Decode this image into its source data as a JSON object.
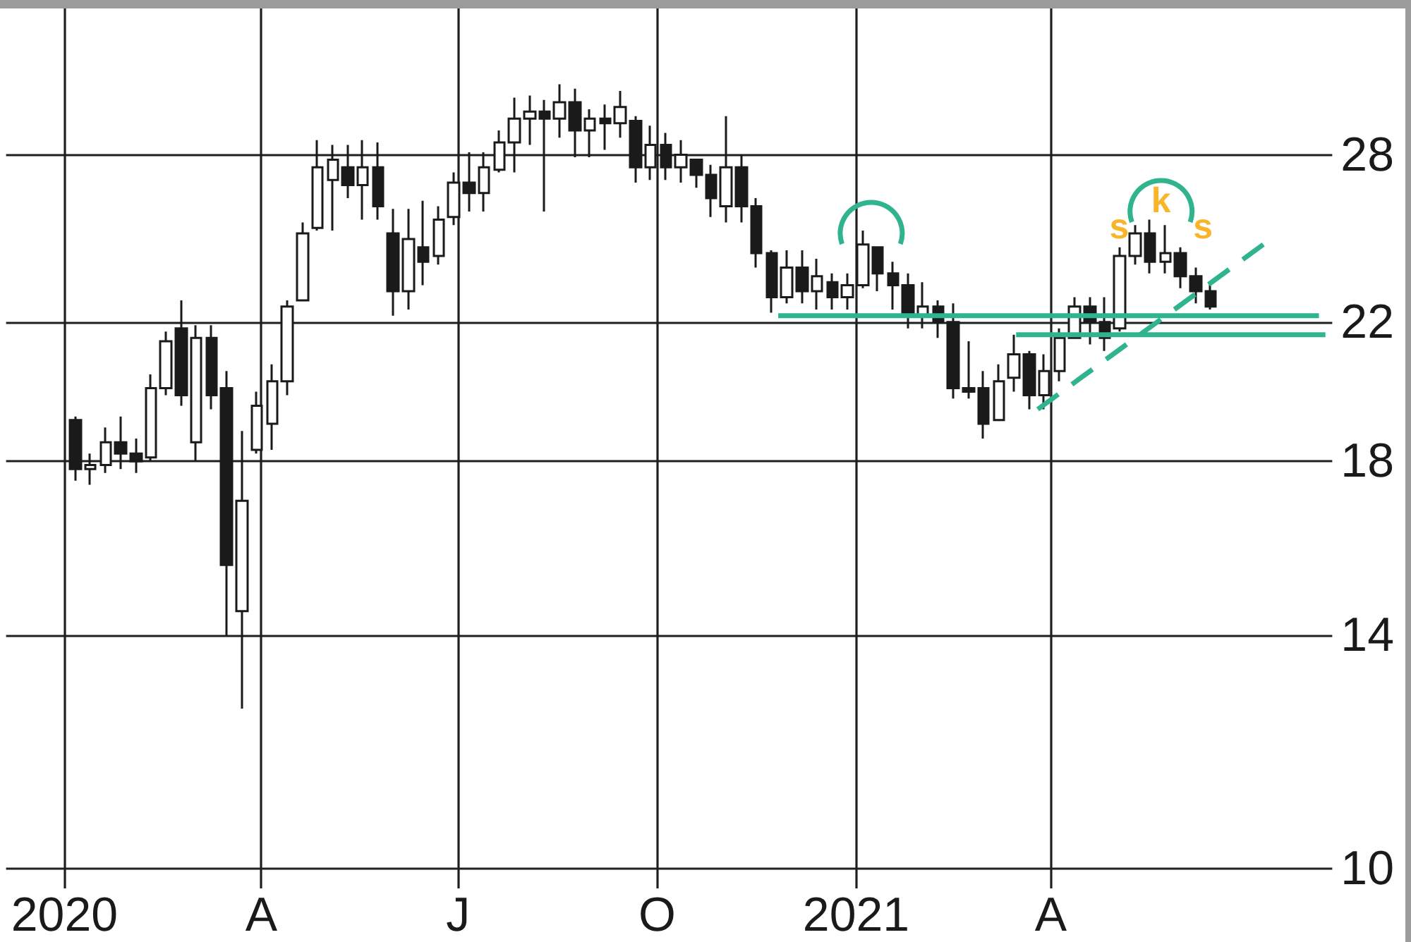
{
  "chart_data": {
    "type": "candlestick",
    "log": "y",
    "grid": true,
    "xlim": [
      "2019-12-05",
      "2021-09-10"
    ],
    "ylim": [
      9,
      35
    ],
    "xticks": [
      {
        "value": "2020-01-01",
        "label": "2020"
      },
      {
        "value": "2020-04-01",
        "label": "A"
      },
      {
        "value": "2020-07-01",
        "label": "J"
      },
      {
        "value": "2020-10-01",
        "label": "O"
      },
      {
        "value": "2021-01-01",
        "label": "2021"
      },
      {
        "value": "2021-04-01",
        "label": "A"
      }
    ],
    "yticks": [
      10,
      14,
      18,
      22,
      28
    ],
    "series": [
      {
        "color": "#1a1a1a",
        "x": [
          "2020-01-06",
          "2020-01-13",
          "2020-01-20",
          "2020-01-27",
          "2020-02-03",
          "2020-02-10",
          "2020-02-17",
          "2020-02-24",
          "2020-03-02",
          "2020-03-09",
          "2020-03-16",
          "2020-03-23",
          "2020-03-30",
          "2020-04-06",
          "2020-04-13",
          "2020-04-20",
          "2020-04-27",
          "2020-05-04",
          "2020-05-11",
          "2020-05-18",
          "2020-05-25",
          "2020-06-01",
          "2020-06-08",
          "2020-06-15",
          "2020-06-22",
          "2020-06-29",
          "2020-07-06",
          "2020-07-13",
          "2020-07-20",
          "2020-07-27",
          "2020-08-03",
          "2020-08-10",
          "2020-08-17",
          "2020-08-24",
          "2020-08-31",
          "2020-09-07",
          "2020-09-14",
          "2020-09-21",
          "2020-09-28",
          "2020-10-05",
          "2020-10-12",
          "2020-10-19",
          "2020-10-26",
          "2020-11-02",
          "2020-11-09",
          "2020-11-16",
          "2020-11-23",
          "2020-11-30",
          "2020-12-07",
          "2020-12-14",
          "2020-12-21",
          "2020-12-28",
          "2021-01-04",
          "2021-01-11",
          "2021-01-18",
          "2021-01-25",
          "2021-02-01",
          "2021-02-08",
          "2021-02-15",
          "2021-02-22",
          "2021-03-01",
          "2021-03-08",
          "2021-03-15",
          "2021-03-22",
          "2021-03-29",
          "2021-04-05",
          "2021-04-12",
          "2021-04-19",
          "2021-04-26",
          "2021-05-03",
          "2021-05-10",
          "2021-05-17",
          "2021-05-24",
          "2021-05-31",
          "2021-06-07",
          "2021-06-14"
        ],
        "ohlc": [
          [
            19.1,
            19.2,
            17.5,
            17.8
          ],
          [
            17.8,
            18.2,
            17.4,
            17.9
          ],
          [
            17.9,
            18.9,
            17.7,
            18.5
          ],
          [
            18.5,
            19.2,
            17.8,
            18.2
          ],
          [
            18.2,
            18.6,
            17.7,
            18.0
          ],
          [
            18.1,
            20.4,
            18.0,
            20.0
          ],
          [
            20.0,
            21.7,
            19.8,
            21.4
          ],
          [
            21.8,
            22.7,
            19.5,
            19.8
          ],
          [
            18.5,
            21.9,
            18.0,
            21.5
          ],
          [
            21.5,
            21.9,
            19.4,
            19.8
          ],
          [
            20.0,
            20.5,
            14.0,
            15.5
          ],
          [
            14.5,
            18.8,
            12.6,
            17.0
          ],
          [
            18.3,
            19.9,
            18.2,
            19.5
          ],
          [
            19.0,
            20.7,
            18.3,
            20.2
          ],
          [
            20.2,
            22.7,
            19.8,
            22.5
          ],
          [
            22.7,
            25.4,
            22.7,
            25.0
          ],
          [
            25.2,
            28.6,
            25.1,
            27.5
          ],
          [
            27.0,
            28.4,
            25.1,
            27.8
          ],
          [
            27.5,
            28.4,
            26.3,
            26.8
          ],
          [
            26.8,
            28.6,
            25.5,
            27.5
          ],
          [
            27.5,
            28.5,
            25.5,
            26.0
          ],
          [
            25.0,
            25.9,
            22.2,
            23.0
          ],
          [
            23.0,
            25.9,
            22.4,
            24.8
          ],
          [
            24.5,
            26.2,
            23.2,
            24.0
          ],
          [
            24.2,
            26.0,
            23.9,
            25.5
          ],
          [
            25.6,
            27.3,
            25.3,
            26.9
          ],
          [
            26.9,
            28.1,
            25.8,
            26.5
          ],
          [
            26.5,
            28.1,
            25.8,
            27.5
          ],
          [
            27.4,
            29.0,
            27.3,
            28.5
          ],
          [
            28.5,
            30.4,
            27.3,
            29.5
          ],
          [
            29.5,
            30.5,
            28.4,
            29.8
          ],
          [
            29.8,
            30.3,
            25.8,
            29.5
          ],
          [
            29.5,
            31.0,
            28.7,
            30.2
          ],
          [
            30.2,
            30.8,
            27.9,
            29.0
          ],
          [
            29.0,
            29.9,
            27.9,
            29.5
          ],
          [
            29.5,
            30.1,
            28.2,
            29.3
          ],
          [
            29.3,
            30.7,
            28.7,
            30.0
          ],
          [
            29.4,
            29.6,
            26.9,
            27.5
          ],
          [
            27.5,
            29.2,
            27.0,
            28.4
          ],
          [
            28.4,
            28.9,
            27.0,
            27.5
          ],
          [
            27.5,
            28.6,
            26.9,
            28.0
          ],
          [
            27.8,
            27.8,
            26.7,
            27.2
          ],
          [
            27.2,
            27.6,
            25.6,
            26.3
          ],
          [
            26.0,
            29.6,
            25.4,
            27.5
          ],
          [
            27.5,
            28.0,
            25.4,
            26.0
          ],
          [
            26.0,
            26.3,
            23.8,
            24.3
          ],
          [
            24.3,
            24.4,
            22.3,
            22.8
          ],
          [
            22.8,
            24.4,
            22.6,
            23.8
          ],
          [
            23.8,
            24.4,
            22.6,
            23.0
          ],
          [
            23.0,
            24.1,
            22.4,
            23.5
          ],
          [
            23.3,
            23.6,
            22.4,
            22.8
          ],
          [
            22.8,
            23.6,
            22.4,
            23.2
          ],
          [
            23.2,
            25.1,
            23.1,
            24.6
          ],
          [
            24.5,
            24.5,
            23.0,
            23.6
          ],
          [
            23.6,
            24.0,
            22.4,
            23.2
          ],
          [
            23.2,
            23.6,
            21.8,
            22.2
          ],
          [
            22.2,
            23.3,
            21.8,
            22.5
          ],
          [
            22.5,
            22.7,
            21.5,
            22.0
          ],
          [
            22.0,
            22.6,
            19.7,
            20.0
          ],
          [
            20.0,
            21.4,
            19.7,
            19.9
          ],
          [
            20.0,
            20.5,
            18.6,
            19.0
          ],
          [
            19.1,
            20.7,
            19.1,
            20.2
          ],
          [
            20.3,
            21.6,
            19.9,
            21.0
          ],
          [
            21.0,
            21.1,
            19.4,
            19.8
          ],
          [
            19.8,
            21.0,
            19.4,
            20.5
          ],
          [
            20.5,
            21.8,
            20.2,
            21.5
          ],
          [
            21.5,
            22.8,
            21.5,
            22.5
          ],
          [
            22.5,
            22.8,
            21.3,
            22.0
          ],
          [
            22.0,
            22.8,
            21.1,
            21.5
          ],
          [
            21.8,
            24.5,
            21.7,
            24.2
          ],
          [
            24.2,
            25.3,
            23.9,
            25.0
          ],
          [
            25.0,
            25.5,
            23.6,
            24.0
          ],
          [
            24.0,
            25.3,
            23.6,
            24.3
          ],
          [
            24.3,
            24.5,
            23.1,
            23.5
          ],
          [
            23.5,
            23.8,
            22.6,
            23.0
          ],
          [
            23.0,
            23.3,
            22.4,
            22.5
          ]
        ]
      },
      {
        "type": "line",
        "color": "#2fb48f",
        "x": [
          "2020-11-26",
          "2021-08-03"
        ],
        "values": [
          22.2,
          22.2
        ]
      },
      {
        "type": "line",
        "color": "#2fb48f",
        "x": [
          "2021-03-16",
          "2021-08-06"
        ],
        "values": [
          21.6,
          21.6
        ]
      },
      {
        "type": "line",
        "color": "#2fb48f",
        "line_style": "dashed",
        "x": [
          "2021-03-26",
          "2021-07-10"
        ],
        "values": [
          19.4,
          24.7
        ]
      }
    ],
    "annotations": [
      "s",
      "k",
      "s"
    ]
  }
}
